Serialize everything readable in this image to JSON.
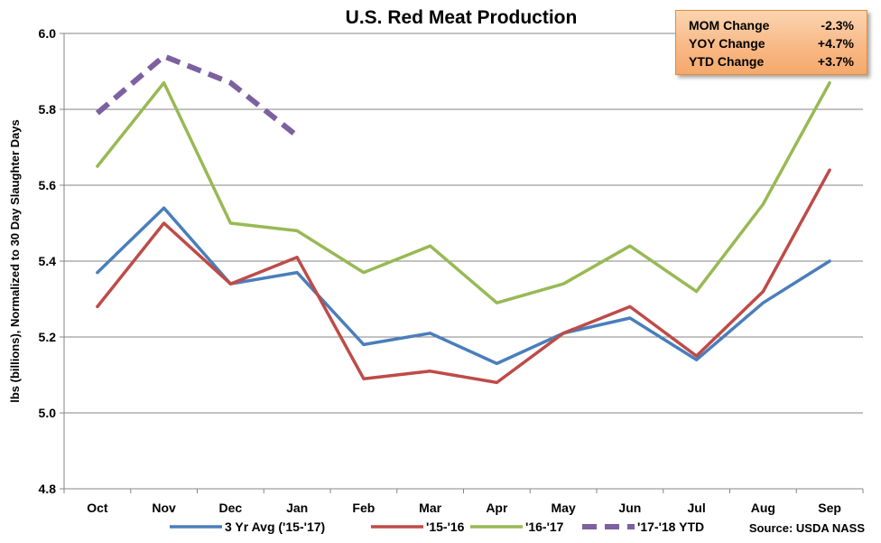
{
  "chart_data": {
    "type": "line",
    "title": "U.S. Red Meat Production",
    "ylabel": "lbs (billions), Normalized to 30 Day Slaughter Days",
    "xlabel": "",
    "categories": [
      "Oct",
      "Nov",
      "Dec",
      "Jan",
      "Feb",
      "Mar",
      "Apr",
      "May",
      "Jun",
      "Jul",
      "Aug",
      "Sep"
    ],
    "ylim": [
      4.8,
      6.0
    ],
    "yticks": [
      "4.8",
      "5.0",
      "5.2",
      "5.4",
      "5.6",
      "5.8",
      "6.0"
    ],
    "ytick_values": [
      4.8,
      5.0,
      5.2,
      5.4,
      5.6,
      5.8,
      6.0
    ],
    "grid": true,
    "legend_position": "bottom",
    "series": [
      {
        "name": "3 Yr Avg ('15-'17)",
        "color": "#4a7ebb",
        "dashed": false,
        "values": [
          5.37,
          5.54,
          5.34,
          5.37,
          5.18,
          5.21,
          5.13,
          5.21,
          5.25,
          5.14,
          5.29,
          5.4
        ]
      },
      {
        "name": "'15-'16",
        "color": "#be4b48",
        "dashed": false,
        "values": [
          5.28,
          5.5,
          5.34,
          5.41,
          5.09,
          5.11,
          5.08,
          5.21,
          5.28,
          5.15,
          5.32,
          5.64
        ]
      },
      {
        "name": "'16-'17",
        "color": "#98b954",
        "dashed": false,
        "values": [
          5.65,
          5.87,
          5.5,
          5.48,
          5.37,
          5.44,
          5.29,
          5.34,
          5.44,
          5.32,
          5.55,
          5.87
        ]
      },
      {
        "name": "'17-'18 YTD",
        "color": "#7d60a0",
        "dashed": true,
        "values": [
          5.79,
          5.94,
          5.87,
          5.73,
          null,
          null,
          null,
          null,
          null,
          null,
          null,
          null
        ]
      }
    ],
    "source": "Source: USDA NASS"
  },
  "stats": [
    {
      "label": "MOM Change",
      "value": "-2.3%"
    },
    {
      "label": "YOY Change",
      "value": "+4.7%"
    },
    {
      "label": "YTD Change",
      "value": "+3.7%"
    }
  ]
}
